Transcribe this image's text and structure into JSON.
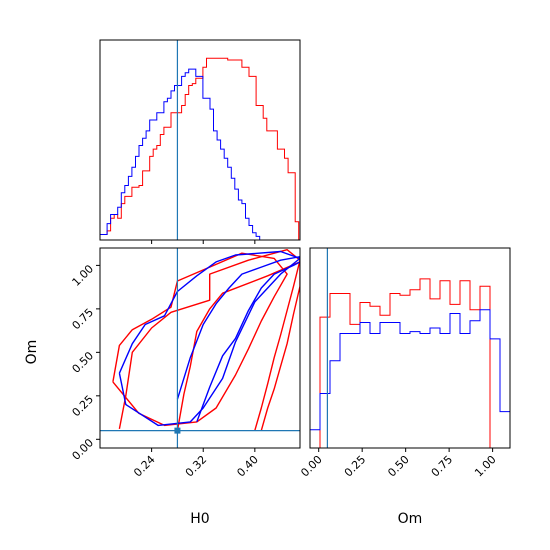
{
  "chart_data": {
    "type": "corner",
    "parameters": [
      "H0",
      "Om"
    ],
    "truths": {
      "H0": 0.28,
      "Om": 0.05
    },
    "colors": {
      "red": "#ff0000",
      "blue": "#0000ff",
      "truth": "#1f77b4"
    },
    "panels": [
      {
        "id": "h0-hist",
        "type": "histogram",
        "xlim": [
          0.16,
          0.47
        ],
        "ylim": [
          0,
          1.1
        ],
        "bins": [
          0.16,
          0.1655,
          0.171,
          0.1765,
          0.182,
          0.1875,
          0.193,
          0.1985,
          0.204,
          0.2095,
          0.215,
          0.2205,
          0.226,
          0.2315,
          0.237,
          0.2425,
          0.248,
          0.2535,
          0.259,
          0.2645,
          0.27,
          0.2755,
          0.281,
          0.2865,
          0.292,
          0.2975,
          0.303,
          0.3085,
          0.314,
          0.3195,
          0.325,
          0.3305,
          0.336,
          0.3415,
          0.347,
          0.3525,
          0.358,
          0.3635,
          0.369,
          0.3745,
          0.38,
          0.3855,
          0.391,
          0.3965,
          0.402,
          0.4075,
          0.413,
          0.4185,
          0.424,
          0.4295,
          0.435,
          0.4405,
          0.446,
          0.4515,
          0.457,
          0.4625,
          0.468
        ],
        "series": [
          {
            "name": "",
            "color": "red",
            "counts": [
              0.03,
              0.03,
              0.05,
              0.12,
              0.14,
              0.12,
              0.2,
              0.24,
              0.24,
              0.29,
              0.29,
              0.3,
              0.38,
              0.38,
              0.46,
              0.5,
              0.52,
              0.58,
              0.62,
              0.62,
              0.7,
              0.7,
              0.7,
              0.74,
              0.8,
              0.85,
              0.86,
              0.89,
              0.89,
              0.95,
              1,
              1,
              1,
              1,
              1,
              1,
              0.99,
              0.99,
              0.99,
              0.99,
              0.95,
              0.95,
              0.9,
              0.9,
              0.74,
              0.74,
              0.67,
              0.6,
              0.6,
              0.6,
              0.5,
              0.5,
              0.45,
              0.37,
              0.37,
              0.1
            ]
          },
          {
            "name": "",
            "color": "blue",
            "counts": [
              0.03,
              0.03,
              0.09,
              0.14,
              0.14,
              0.18,
              0.26,
              0.3,
              0.35,
              0.4,
              0.46,
              0.52,
              0.56,
              0.6,
              0.66,
              0.66,
              0.7,
              0.7,
              0.76,
              0.78,
              0.82,
              0.85,
              0.85,
              0.9,
              0.92,
              0.94,
              0.94,
              0.9,
              0.9,
              0.78,
              0.78,
              0.72,
              0.6,
              0.55,
              0.5,
              0.45,
              0.4,
              0.34,
              0.28,
              0.22,
              0.2,
              0.12,
              0.08,
              0.04,
              0.02,
              0,
              0,
              0,
              0,
              0,
              0,
              0,
              0,
              0,
              0,
              0
            ]
          }
        ]
      },
      {
        "id": "om-hist",
        "type": "histogram",
        "xlim": [
          -0.05,
          1.1
        ],
        "ylim": [
          0,
          1.1
        ],
        "bins": [
          -0.05,
          0.0075,
          0.065,
          0.1225,
          0.18,
          0.2375,
          0.295,
          0.3525,
          0.41,
          0.4675,
          0.525,
          0.5825,
          0.64,
          0.6975,
          0.755,
          0.8125,
          0.87,
          0.9275,
          0.985,
          1.0425,
          1.1
        ],
        "series": [
          {
            "name": "",
            "color": "red",
            "counts": [
              0,
              0.72,
              0.85,
              0.85,
              0.68,
              0.8,
              0.78,
              0.73,
              0.85,
              0.84,
              0.87,
              0.93,
              0.82,
              0.92,
              0.79,
              0.92,
              0.76,
              0.89,
              0,
              0
            ]
          },
          {
            "name": "",
            "color": "blue",
            "counts": [
              0.1,
              0.3,
              0.48,
              0.63,
              0.63,
              0.69,
              0.63,
              0.69,
              0.69,
              0.63,
              0.64,
              0.63,
              0.66,
              0.63,
              0.74,
              0.63,
              0.7,
              0.76,
              0.6,
              0.2
            ]
          }
        ]
      },
      {
        "id": "om-vs-h0",
        "type": "contour",
        "xlim": [
          0.16,
          0.47
        ],
        "ylim": [
          -0.05,
          1.1
        ],
        "x_label": "H0",
        "y_label": "Om",
        "x_ticks": [
          0.24,
          0.32,
          0.4
        ],
        "y_ticks": [
          0.0,
          0.25,
          0.5,
          0.75,
          1.0
        ],
        "series": [
          {
            "name": "",
            "color": "red",
            "contours": [
              [
                [
                  0.18,
                  0.33
                ],
                [
                  0.19,
                  0.54
                ],
                [
                  0.21,
                  0.63
                ],
                [
                  0.24,
                  0.69
                ],
                [
                  0.27,
                  0.76
                ],
                [
                  0.28,
                  0.91
                ],
                [
                  0.33,
                  0.99
                ],
                [
                  0.38,
                  1.07
                ],
                [
                  0.43,
                  1.04
                ],
                [
                  0.45,
                  0.95
                ],
                [
                  0.43,
                  0.82
                ],
                [
                  0.41,
                  0.68
                ],
                [
                  0.39,
                  0.52
                ],
                [
                  0.37,
                  0.37
                ],
                [
                  0.34,
                  0.18
                ],
                [
                  0.31,
                  0.1
                ],
                [
                  0.26,
                  0.08
                ],
                [
                  0.22,
                  0.15
                ],
                [
                  0.18,
                  0.33
                ]
              ],
              [
                [
                  0.19,
                  0.06
                ],
                [
                  0.2,
                  0.25
                ],
                [
                  0.21,
                  0.5
                ],
                [
                  0.24,
                  0.64
                ],
                [
                  0.27,
                  0.73
                ],
                [
                  0.33,
                  0.8
                ],
                [
                  0.33,
                  0.95
                ],
                [
                  0.39,
                  1.03
                ],
                [
                  0.45,
                  1.09
                ],
                [
                  0.47,
                  1.03
                ],
                [
                  0.46,
                  0.88
                ],
                [
                  0.44,
                  0.6
                ],
                [
                  0.43,
                  0.47
                ],
                [
                  0.42,
                  0.32
                ],
                [
                  0.41,
                  0.18
                ],
                [
                  0.4,
                  0.05
                ]
              ],
              [
                [
                  0.28,
                  0.05
                ],
                [
                  0.29,
                  0.26
                ],
                [
                  0.3,
                  0.42
                ],
                [
                  0.31,
                  0.62
                ],
                [
                  0.33,
                  0.75
                ],
                [
                  0.35,
                  0.84
                ],
                [
                  0.42,
                  0.94
                ],
                [
                  0.47,
                  1.02
                ],
                [
                  0.47,
                  0.88
                ],
                [
                  0.46,
                  0.72
                ],
                [
                  0.45,
                  0.55
                ],
                [
                  0.44,
                  0.42
                ],
                [
                  0.43,
                  0.29
                ],
                [
                  0.42,
                  0.18
                ],
                [
                  0.41,
                  0.05
                ]
              ]
            ]
          },
          {
            "name": "",
            "color": "blue",
            "contours": [
              [
                [
                  0.19,
                  0.38
                ],
                [
                  0.21,
                  0.55
                ],
                [
                  0.23,
                  0.66
                ],
                [
                  0.26,
                  0.71
                ],
                [
                  0.28,
                  0.85
                ],
                [
                  0.31,
                  0.94
                ],
                [
                  0.34,
                  1.02
                ],
                [
                  0.37,
                  1.06
                ],
                [
                  0.44,
                  1.08
                ],
                [
                  0.47,
                  1.04
                ],
                [
                  0.44,
                  0.95
                ],
                [
                  0.4,
                  0.79
                ],
                [
                  0.37,
                  0.56
                ],
                [
                  0.35,
                  0.35
                ],
                [
                  0.32,
                  0.18
                ],
                [
                  0.3,
                  0.1
                ],
                [
                  0.25,
                  0.08
                ],
                [
                  0.2,
                  0.2
                ],
                [
                  0.19,
                  0.38
                ]
              ],
              [
                [
                  0.28,
                  0.23
                ],
                [
                  0.3,
                  0.47
                ],
                [
                  0.32,
                  0.66
                ],
                [
                  0.34,
                  0.78
                ],
                [
                  0.36,
                  0.87
                ],
                [
                  0.38,
                  0.95
                ],
                [
                  0.41,
                  0.99
                ],
                [
                  0.44,
                  1.03
                ],
                [
                  0.47,
                  1.05
                ]
              ],
              [
                [
                  0.31,
                  0.1
                ],
                [
                  0.33,
                  0.3
                ],
                [
                  0.35,
                  0.48
                ],
                [
                  0.37,
                  0.58
                ],
                [
                  0.39,
                  0.74
                ],
                [
                  0.41,
                  0.87
                ],
                [
                  0.43,
                  0.95
                ],
                [
                  0.46,
                  1
                ],
                [
                  0.47,
                  1.02
                ]
              ]
            ]
          }
        ]
      }
    ]
  },
  "labels": {
    "h0_axis_label": "H0",
    "om_axis_label": "Om",
    "om_x_axis_label": "Om"
  },
  "ticks": {
    "h0": [
      "0.24",
      "0.32",
      "0.40"
    ],
    "om_y": [
      "0.00",
      "0.25",
      "0.50",
      "0.75",
      "1.00"
    ],
    "om_x": [
      "0.00",
      "0.25",
      "0.50",
      "0.75",
      "1.00"
    ]
  }
}
